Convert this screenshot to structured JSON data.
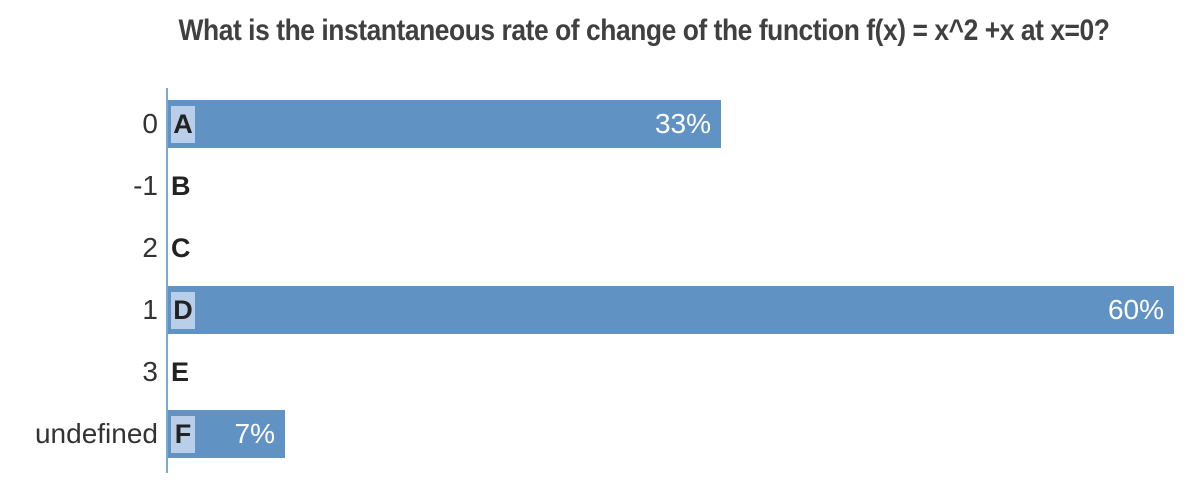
{
  "title": "What is the instantaneous rate of change of the function f(x) = x^2 +x at x=0?",
  "chart_data": {
    "type": "bar",
    "orientation": "horizontal",
    "title": "What is the instantaneous rate of change of the function f(x) = x^2 +x at x=0?",
    "categories": [
      "0",
      "-1",
      "2",
      "1",
      "3",
      "undefined"
    ],
    "option_letters": [
      "A",
      "B",
      "C",
      "D",
      "E",
      "F"
    ],
    "values": [
      33,
      0,
      0,
      60,
      0,
      7
    ],
    "value_labels": [
      "33%",
      "",
      "",
      "60%",
      "",
      "7%"
    ],
    "unit": "%",
    "scale_max": 60,
    "grid": false,
    "legend": "none",
    "colors": {
      "bar": "#6092c4",
      "letter_badge": "#b9cfe9",
      "axis_line": "#79aad3",
      "title_text": "#404040",
      "label_text": "#333333",
      "letter_text": "#222222",
      "value_text": "#ffffff",
      "background": "#ffffff"
    }
  }
}
